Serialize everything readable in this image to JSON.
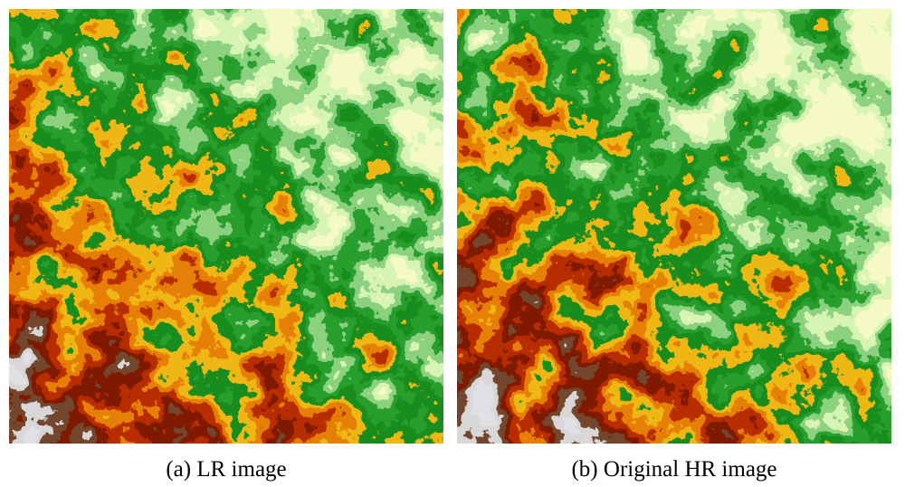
{
  "panels": [
    {
      "caption": "(a) LR image"
    },
    {
      "caption": "(b) Original HR image"
    }
  ]
}
